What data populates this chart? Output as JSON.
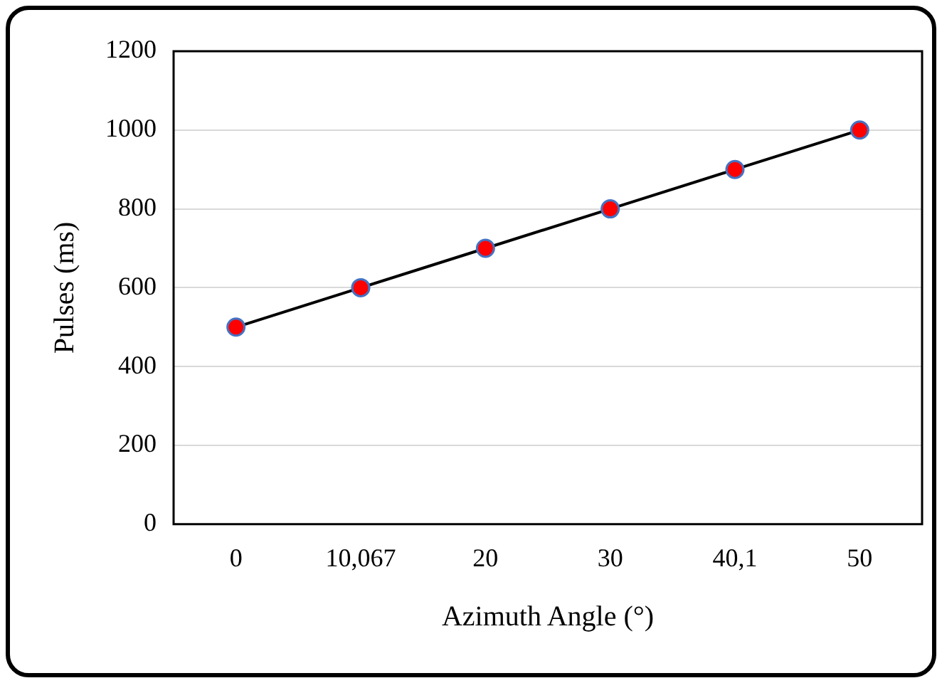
{
  "chart_data": {
    "type": "line",
    "xlabel": "Azimuth Angle (°)",
    "ylabel": "Pulses (ms)",
    "categories": [
      "0",
      "10,067",
      "20",
      "30",
      "40,1",
      "50"
    ],
    "series": [
      {
        "color": "#000000",
        "colors": [
          "#ff0000",
          "#ff0000",
          "#ff0000",
          "#ff0000",
          "#ff0000",
          "#ff0000"
        ],
        "values": [
          500,
          600,
          700,
          800,
          900,
          1000
        ]
      }
    ],
    "ylim": [
      0,
      1200
    ],
    "yticks": [
      0,
      200,
      400,
      600,
      800,
      1000,
      1200
    ],
    "grid": "y",
    "legend": false,
    "marker": "circle",
    "line_style": "solid"
  }
}
